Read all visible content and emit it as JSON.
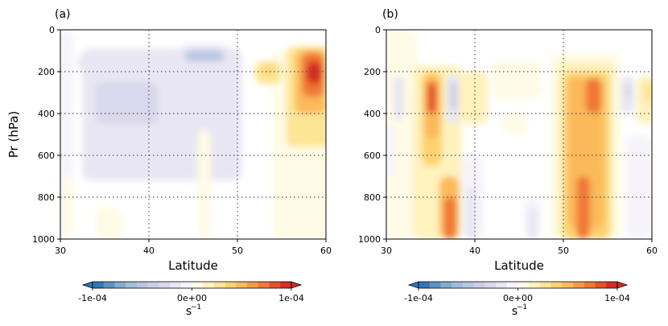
{
  "chart_data": [
    {
      "type": "heatmap",
      "panel_label": "(a)",
      "xlabel": "Latitude",
      "ylabel": "Pr (hPa)",
      "xlim": [
        30,
        60
      ],
      "ylim": [
        1000,
        0
      ],
      "x_ticks": [
        "30",
        "40",
        "50",
        "60"
      ],
      "y_ticks": [
        "0",
        "200",
        "400",
        "600",
        "800",
        "1000"
      ],
      "grid_dotted_x": [
        40,
        50
      ],
      "grid_dotted_y": [
        200,
        400,
        600,
        800
      ],
      "features": [
        {
          "lat": 29.5,
          "lat_end": 31.5,
          "p_top": 0,
          "p_bottom": 1000,
          "value": -5e-06
        },
        {
          "lat": 32.5,
          "lat_end": 50.5,
          "p_top": 90,
          "p_bottom": 720,
          "value": -1.2e-05
        },
        {
          "lat": 35.5,
          "lat_end": 42.0,
          "p_top": 280,
          "p_bottom": 700,
          "value": -2.2e-05
        },
        {
          "lat": 43.5,
          "lat_end": 49.0,
          "p_top": 70,
          "p_bottom": 190,
          "value": -2.2e-05
        },
        {
          "lat": 32.0,
          "lat_end": 42.0,
          "p_top": 110,
          "p_bottom": 200,
          "value": -2e-05
        },
        {
          "lat": 34.0,
          "lat_end": 41.0,
          "p_top": 250,
          "p_bottom": 450,
          "value": -3.2e-05
        },
        {
          "lat": 44.0,
          "lat_end": 48.5,
          "p_top": 100,
          "p_bottom": 150,
          "value": -4.5e-05
        },
        {
          "lat": 46.0,
          "lat_end": 48.0,
          "p_top": 115,
          "p_bottom": 135,
          "value": -5.5e-05
        },
        {
          "lat": 30.2,
          "lat_end": 31.5,
          "p_top": 700,
          "p_bottom": 1000,
          "value": 8e-06
        },
        {
          "lat": 34.0,
          "lat_end": 37.0,
          "p_top": 850,
          "p_bottom": 1000,
          "value": 5e-06
        },
        {
          "lat": 45.5,
          "lat_end": 47.0,
          "p_top": 480,
          "p_bottom": 1000,
          "value": 5e-06
        },
        {
          "lat": 54.0,
          "lat_end": 60.5,
          "p_top": 100,
          "p_bottom": 1000,
          "value": 8e-06
        },
        {
          "lat": 52.0,
          "lat_end": 55.0,
          "p_top": 150,
          "p_bottom": 260,
          "value": 2.5e-05
        },
        {
          "lat": 53.0,
          "lat_end": 54.0,
          "p_top": 170,
          "p_bottom": 220,
          "value": 4e-05
        },
        {
          "lat": 55.5,
          "lat_end": 60.5,
          "p_top": 80,
          "p_bottom": 560,
          "value": 2.5e-05
        },
        {
          "lat": 56.5,
          "lat_end": 60.0,
          "p_top": 95,
          "p_bottom": 400,
          "value": 4.5e-05
        },
        {
          "lat": 57.3,
          "lat_end": 59.8,
          "p_top": 110,
          "p_bottom": 320,
          "value": 7e-05
        },
        {
          "lat": 57.8,
          "lat_end": 59.5,
          "p_top": 150,
          "p_bottom": 260,
          "value": 9e-05
        }
      ]
    },
    {
      "type": "heatmap",
      "panel_label": "(b)",
      "xlabel": "Latitude",
      "ylabel": "",
      "xlim": [
        30,
        60
      ],
      "ylim": [
        1000,
        0
      ],
      "x_ticks": [
        "30",
        "40",
        "50",
        "60"
      ],
      "y_ticks": [
        "0",
        "200",
        "400",
        "600",
        "800",
        "1000"
      ],
      "grid_dotted_x": [
        40,
        50
      ],
      "grid_dotted_y": [
        200,
        400,
        600,
        800
      ],
      "features": [
        {
          "lat": 30.0,
          "lat_end": 33.5,
          "p_top": 0,
          "p_bottom": 1000,
          "value": 6e-06
        },
        {
          "lat": 30.8,
          "lat_end": 32.0,
          "p_top": 220,
          "p_bottom": 430,
          "value": -1.5e-05
        },
        {
          "lat": 30.0,
          "lat_end": 31.0,
          "p_top": 450,
          "p_bottom": 700,
          "value": -6e-06
        },
        {
          "lat": 33.0,
          "lat_end": 38.5,
          "p_top": 170,
          "p_bottom": 1000,
          "value": 1.5e-05
        },
        {
          "lat": 34.0,
          "lat_end": 36.3,
          "p_top": 200,
          "p_bottom": 650,
          "value": 3.5e-05
        },
        {
          "lat": 34.3,
          "lat_end": 36.0,
          "p_top": 220,
          "p_bottom": 520,
          "value": 5.5e-05
        },
        {
          "lat": 34.6,
          "lat_end": 35.7,
          "p_top": 250,
          "p_bottom": 400,
          "value": 8e-05
        },
        {
          "lat": 36.0,
          "lat_end": 38.2,
          "p_top": 700,
          "p_bottom": 1000,
          "value": 4.5e-05
        },
        {
          "lat": 36.5,
          "lat_end": 37.9,
          "p_top": 800,
          "p_bottom": 1000,
          "value": 7.5e-05
        },
        {
          "lat": 36.8,
          "lat_end": 38.3,
          "p_top": 210,
          "p_bottom": 450,
          "value": -2e-05
        },
        {
          "lat": 37.2,
          "lat_end": 38.0,
          "p_top": 250,
          "p_bottom": 380,
          "value": -3.5e-05
        },
        {
          "lat": 38.2,
          "lat_end": 41.5,
          "p_top": 200,
          "p_bottom": 450,
          "value": 1.2e-05
        },
        {
          "lat": 38.5,
          "lat_end": 41.0,
          "p_top": 600,
          "p_bottom": 1000,
          "value": -1e-05
        },
        {
          "lat": 39.0,
          "lat_end": 40.2,
          "p_top": 750,
          "p_bottom": 1000,
          "value": -2e-05
        },
        {
          "lat": 42.0,
          "lat_end": 47.5,
          "p_top": 150,
          "p_bottom": 330,
          "value": 6e-06
        },
        {
          "lat": 43.0,
          "lat_end": 46.0,
          "p_top": 400,
          "p_bottom": 500,
          "value": 5e-06
        },
        {
          "lat": 45.5,
          "lat_end": 47.5,
          "p_top": 800,
          "p_bottom": 1000,
          "value": -1e-05
        },
        {
          "lat": 46.0,
          "lat_end": 47.0,
          "p_top": 850,
          "p_bottom": 1000,
          "value": -1.8e-05
        },
        {
          "lat": 48.5,
          "lat_end": 56.5,
          "p_top": 110,
          "p_bottom": 1000,
          "value": 1e-05
        },
        {
          "lat": 49.3,
          "lat_end": 55.8,
          "p_top": 150,
          "p_bottom": 1000,
          "value": 2.2e-05
        },
        {
          "lat": 50.0,
          "lat_end": 55.2,
          "p_top": 200,
          "p_bottom": 1000,
          "value": 3.5e-05
        },
        {
          "lat": 50.5,
          "lat_end": 54.5,
          "p_top": 230,
          "p_bottom": 950,
          "value": 5e-05
        },
        {
          "lat": 52.5,
          "lat_end": 54.3,
          "p_top": 230,
          "p_bottom": 400,
          "value": 7e-05
        },
        {
          "lat": 51.5,
          "lat_end": 53.0,
          "p_top": 700,
          "p_bottom": 1000,
          "value": 7e-05
        },
        {
          "lat": 56.5,
          "lat_end": 58.0,
          "p_top": 220,
          "p_bottom": 400,
          "value": -1.5e-05
        },
        {
          "lat": 57.0,
          "lat_end": 57.7,
          "p_top": 260,
          "p_bottom": 330,
          "value": -2.8e-05
        },
        {
          "lat": 58.3,
          "lat_end": 60.5,
          "p_top": 220,
          "p_bottom": 450,
          "value": 1.5e-05
        },
        {
          "lat": 59.0,
          "lat_end": 60.5,
          "p_top": 250,
          "p_bottom": 350,
          "value": 3e-05
        },
        {
          "lat": 57.0,
          "lat_end": 60.0,
          "p_top": 500,
          "p_bottom": 1000,
          "value": -4e-06
        }
      ]
    }
  ],
  "colorbar": {
    "min": -0.0001,
    "max": 0.0001,
    "tick_labels": [
      "-1e-04",
      "0e+00",
      "1e-04"
    ],
    "unit_label": "s",
    "unit_exponent": "−1",
    "colors": [
      "#2f78b5",
      "#5a95c5",
      "#7facd2",
      "#9fbede",
      "#b7c6e2",
      "#cacde6",
      "#d9d8ec",
      "#e8e6f2",
      "#f6f4fa",
      "#fffbe6",
      "#fff2bd",
      "#fde596",
      "#fcd270",
      "#fbb95a",
      "#f79a46",
      "#f07735",
      "#e45329",
      "#d42f22"
    ]
  }
}
